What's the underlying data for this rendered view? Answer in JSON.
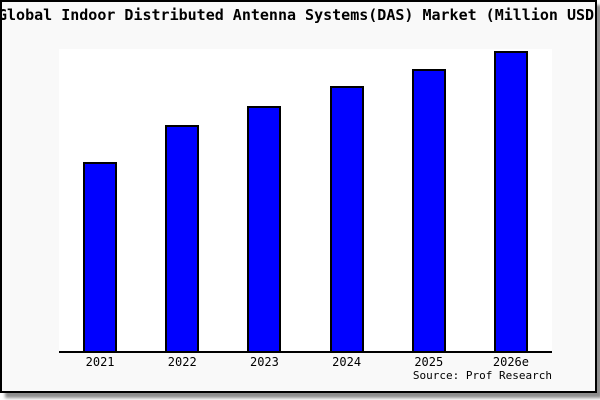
{
  "chart_data": {
    "type": "bar",
    "title": "Global Indoor Distributed Antenna Systems(DAS) Market (Million USD)",
    "categories": [
      "2021",
      "2022",
      "2023",
      "2024",
      "2025",
      "2026e"
    ],
    "values": [
      63,
      75.5,
      81.7,
      88.3,
      94,
      100
    ],
    "values_note": "No y-axis or value labels are shown in the chart; values are relative bar heights as a percentage of the tallest (2026e) bar",
    "ylim": [
      0,
      100.7
    ],
    "xlabel": "",
    "ylabel": "",
    "grid": false,
    "legend": false,
    "source": "Source: Prof Research",
    "colors": {
      "bar_fill": "#0000ff",
      "bar_border": "#000000",
      "chart_background": "#f9f9f9",
      "plot_background": "#ffffff",
      "axis": "#000000",
      "text": "#000000"
    }
  }
}
